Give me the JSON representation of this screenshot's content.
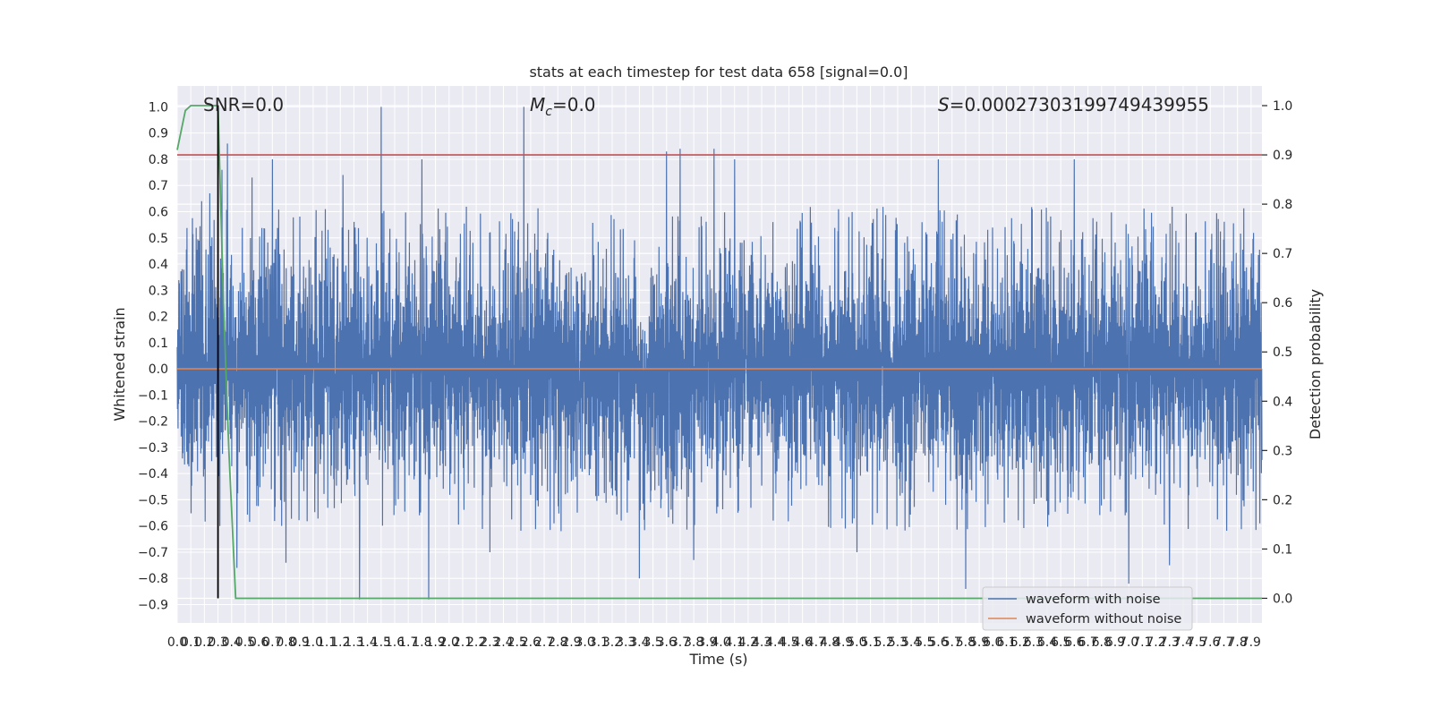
{
  "chart_data": {
    "type": "line",
    "title": "stats at each timestep for test data 658 [signal=0.0]",
    "xlabel": "Time (s)",
    "ylabel": "Whitened strain",
    "ylabel_right": "Detection probability",
    "xlim": [
      0.0,
      7.98
    ],
    "ylim": [
      -0.97,
      1.08
    ],
    "ylim_right": [
      -0.05,
      1.04
    ],
    "x_ticks": [
      "0.0",
      "0.1",
      "0.2",
      "0.3",
      "0.4",
      "0.5",
      "0.6",
      "0.7",
      "0.8",
      "0.9",
      "1.0",
      "1.1",
      "1.2",
      "1.3",
      "1.4",
      "1.5",
      "1.6",
      "1.7",
      "1.8",
      "1.9",
      "2.0",
      "2.1",
      "2.2",
      "2.3",
      "2.4",
      "2.5",
      "2.6",
      "2.7",
      "2.8",
      "2.9",
      "3.0",
      "3.1",
      "3.2",
      "3.3",
      "3.4",
      "3.5",
      "3.6",
      "3.7",
      "3.8",
      "3.9",
      "4.0",
      "4.1",
      "4.2",
      "4.3",
      "4.4",
      "4.5",
      "4.6",
      "4.7",
      "4.8",
      "4.9",
      "5.0",
      "5.1",
      "5.2",
      "5.3",
      "5.4",
      "5.5",
      "5.6",
      "5.7",
      "5.8",
      "5.9",
      "6.0",
      "6.1",
      "6.2",
      "6.3",
      "6.4",
      "6.5",
      "6.6",
      "6.7",
      "6.8",
      "6.9",
      "7.0",
      "7.1",
      "7.2",
      "7.3",
      "7.4",
      "7.5",
      "7.6",
      "7.7",
      "7.8",
      "7.9"
    ],
    "y_ticks": [
      "-0.9",
      "-0.8",
      "-0.7",
      "-0.6",
      "-0.5",
      "-0.4",
      "-0.3",
      "-0.2",
      "-0.1",
      "0.0",
      "0.1",
      "0.2",
      "0.3",
      "0.4",
      "0.5",
      "0.6",
      "0.7",
      "0.8",
      "0.9",
      "1.0"
    ],
    "y_ticks_right": [
      "0.0",
      "0.1",
      "0.2",
      "0.3",
      "0.4",
      "0.5",
      "0.6",
      "0.7",
      "0.8",
      "0.9",
      "1.0"
    ],
    "annotations": {
      "snr": "SNR=0.0",
      "mc_symbol": "M",
      "mc_sub": "c",
      "mc_value": "=0.0",
      "s_symbol": "S",
      "s_value": "=0.00027303199749439955"
    },
    "series": [
      {
        "name": "waveform with noise",
        "color": "#4c72b0",
        "axis": "left",
        "description_shape": "dense noise, envelope ~ -0.6..0.6 with spikes to ~1.0 and ~-0.88",
        "noise_amplitude": 0.48,
        "spikes": [
          [
            0.18,
            0.64
          ],
          [
            0.24,
            0.67
          ],
          [
            0.33,
            0.76
          ],
          [
            0.37,
            0.86
          ],
          [
            0.44,
            -0.76
          ],
          [
            0.55,
            0.73
          ],
          [
            0.7,
            0.8
          ],
          [
            0.8,
            -0.74
          ],
          [
            1.22,
            0.74
          ],
          [
            1.34,
            -0.88
          ],
          [
            1.5,
            1.0
          ],
          [
            1.8,
            0.8
          ],
          [
            1.85,
            -0.88
          ],
          [
            2.3,
            -0.7
          ],
          [
            2.55,
            1.0
          ],
          [
            3.4,
            -0.8
          ],
          [
            3.6,
            0.83
          ],
          [
            3.7,
            0.84
          ],
          [
            3.8,
            -0.73
          ],
          [
            3.95,
            0.84
          ],
          [
            4.1,
            0.8
          ],
          [
            5.0,
            -0.7
          ],
          [
            5.6,
            0.8
          ],
          [
            5.8,
            -0.84
          ],
          [
            6.6,
            0.8
          ],
          [
            7.0,
            -0.82
          ],
          [
            7.3,
            -0.75
          ]
        ]
      },
      {
        "name": "waveform without noise",
        "color": "#dd8452",
        "axis": "left",
        "x": [
          0.0,
          7.98
        ],
        "y": [
          0.0,
          0.0
        ]
      },
      {
        "name": "detection probability",
        "color": "#55a868",
        "axis": "right",
        "x": [
          0.0,
          0.06,
          0.1,
          0.14,
          0.18,
          0.22,
          0.26,
          0.3,
          0.34,
          0.38,
          0.43,
          0.6,
          7.98
        ],
        "y": [
          0.91,
          0.99,
          1.0,
          1.0,
          1.0,
          1.0,
          1.0,
          1.0,
          0.6,
          0.3,
          0.0,
          0.0,
          0.0
        ]
      },
      {
        "name": "threshold",
        "color": "#c44e52",
        "axis": "right",
        "x": [
          0.0,
          7.98
        ],
        "y": [
          0.9,
          0.9
        ]
      }
    ],
    "vline": {
      "x": 0.3,
      "ymin": 0.0,
      "ymax": 1.0,
      "axis": "right",
      "color": "#000000"
    },
    "legend": {
      "placement": "lower-right",
      "entries": [
        "waveform with noise",
        "waveform without noise"
      ]
    },
    "grid": true,
    "colors": {
      "background": "#eaeaf2",
      "grid": "#ffffff",
      "text": "#262626"
    }
  }
}
